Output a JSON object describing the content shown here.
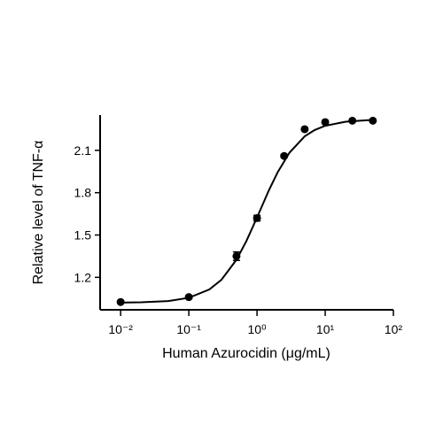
{
  "chart_data": {
    "type": "scatter",
    "xlabel": "Human Azurocidin (μg/mL)",
    "ylabel": "Relative level of TNF-α",
    "xscale": "log",
    "xlim": [
      0.005,
      100
    ],
    "xticks": [
      {
        "value": 0.01,
        "label": "10⁻²"
      },
      {
        "value": 0.1,
        "label": "10⁻¹"
      },
      {
        "value": 1,
        "label": "10⁰"
      },
      {
        "value": 10,
        "label": "10¹"
      },
      {
        "value": 100,
        "label": "10²"
      }
    ],
    "ylim": [
      0.97,
      2.35
    ],
    "yticks": [
      1.2,
      1.5,
      1.8,
      2.1
    ],
    "color": "#000000",
    "x": [
      0.01,
      0.1,
      0.5,
      1,
      2.5,
      5,
      10,
      25,
      50
    ],
    "values": [
      1.025,
      1.06,
      1.35,
      1.62,
      2.06,
      2.25,
      2.3,
      2.31,
      2.31
    ],
    "errors": [
      0.005,
      0.01,
      0.03,
      0.02,
      0.01,
      0.01,
      0.01,
      0.005,
      0.005
    ],
    "curve": {
      "x": [
        0.01,
        0.02,
        0.05,
        0.1,
        0.2,
        0.3,
        0.5,
        0.7,
        1,
        1.5,
        2,
        3,
        5,
        7,
        10,
        20,
        50
      ],
      "values": [
        1.021,
        1.023,
        1.032,
        1.055,
        1.114,
        1.182,
        1.325,
        1.458,
        1.624,
        1.819,
        1.943,
        2.084,
        2.199,
        2.244,
        2.274,
        2.303,
        2.316
      ]
    }
  }
}
